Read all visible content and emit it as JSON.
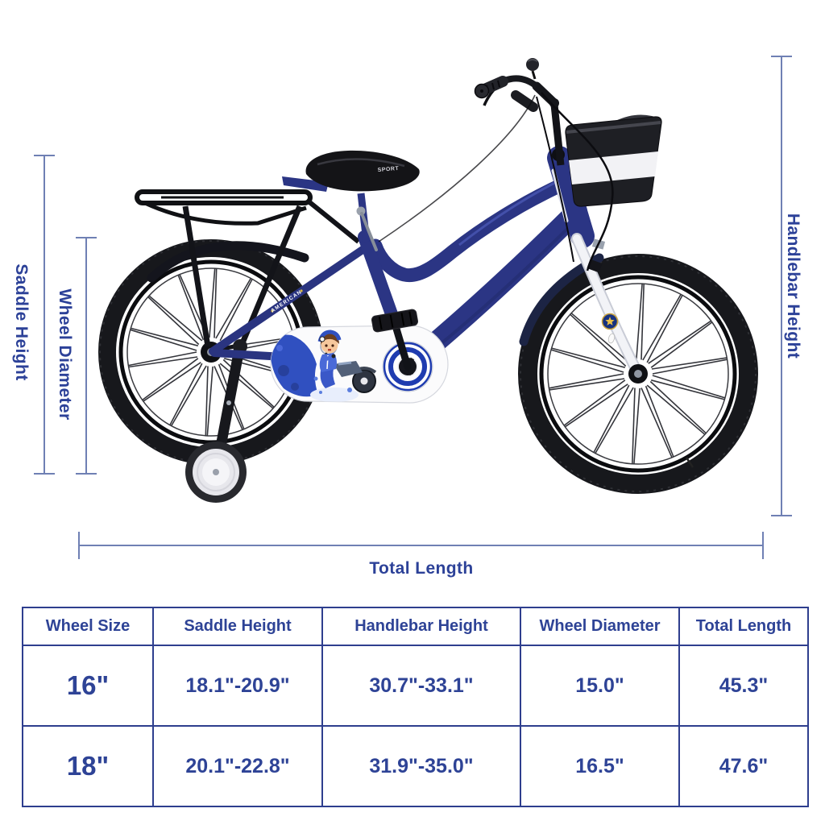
{
  "diagram": {
    "labels": {
      "saddle_height": "Saddle Height",
      "wheel_diameter": "Wheel Diameter",
      "handlebar_height": "Handlebar Height",
      "total_length": "Total Length"
    },
    "bike": {
      "seat_text": "SPORT",
      "frame_decal": "AMERICAN"
    },
    "colors": {
      "frame_navy": "#2b3584",
      "dimension_line": "#6f80b4",
      "label_text": "#2c4198",
      "guard_ring_blue": "#1f3cb0",
      "table_text": "#2e4396",
      "table_border": "#2e3e8e"
    }
  },
  "table": {
    "headers": [
      "Wheel Size",
      "Saddle Height",
      "Handlebar Height",
      "Wheel Diameter",
      "Total Length"
    ],
    "rows": [
      {
        "cells": [
          "16\"",
          "18.1\"-20.9\"",
          "30.7\"-33.1\"",
          "15.0\"",
          "45.3\""
        ]
      },
      {
        "cells": [
          "18\"",
          "20.1\"-22.8\"",
          "31.9\"-35.0\"",
          "16.5\"",
          "47.6\""
        ]
      }
    ]
  }
}
